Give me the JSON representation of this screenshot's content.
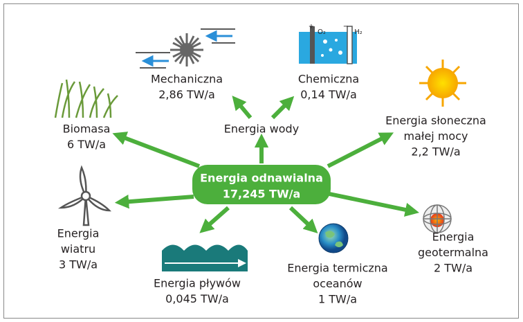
{
  "center": {
    "lines": [
      "Energia odnawialna",
      "17,245 TW/a"
    ]
  },
  "nodes": [
    {
      "lines": [
        "Energia wody"
      ]
    },
    {
      "lines": [
        "Mechaniczna",
        "2,86 TW/a"
      ]
    },
    {
      "lines": [
        "Chemiczna",
        "0,14 TW/a"
      ]
    },
    {
      "lines": [
        "Biomasa",
        "6 TW/a"
      ]
    },
    {
      "lines": [
        "Energia słoneczna",
        "małej mocy",
        "2,2 TW/a"
      ]
    },
    {
      "lines": [
        "Energia",
        "wiatru",
        "3 TW/a"
      ]
    },
    {
      "lines": [
        "Energia pływów",
        "0,045 TW/a"
      ]
    },
    {
      "lines": [
        "Energia termiczna",
        "oceanów",
        "1 TW/a"
      ]
    },
    {
      "lines": [
        "Energia",
        "geotermalna",
        "2 TW/a"
      ]
    }
  ],
  "icon_labels": [
    "+",
    "O₂",
    "−",
    "H₂"
  ]
}
